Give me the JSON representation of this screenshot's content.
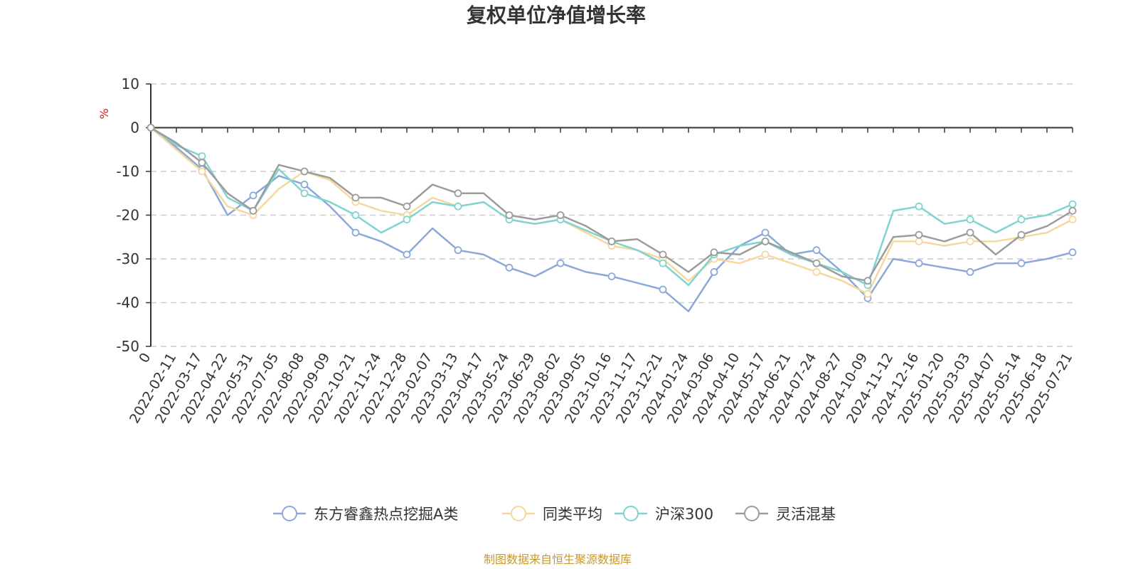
{
  "chart_data": {
    "type": "line",
    "title": "复权单位净值增长率",
    "ylabel": "%",
    "ylim": [
      -50,
      10
    ],
    "yticks": [
      10,
      0,
      -10,
      -20,
      -30,
      -40,
      -50
    ],
    "grid": true,
    "legend_position": "bottom",
    "x": [
      "0",
      "2022-02-11",
      "2022-03-17",
      "2022-04-22",
      "2022-05-31",
      "2022-07-05",
      "2022-08-08",
      "2022-09-09",
      "2022-10-21",
      "2022-11-24",
      "2022-12-28",
      "2023-02-07",
      "2023-03-13",
      "2023-04-17",
      "2023-05-24",
      "2023-06-29",
      "2023-08-02",
      "2023-09-05",
      "2023-10-16",
      "2023-11-17",
      "2023-12-21",
      "2024-01-24",
      "2024-03-06",
      "2024-04-10",
      "2024-05-17",
      "2024-06-21",
      "2024-07-24",
      "2024-08-27",
      "2024-10-09",
      "2024-11-12",
      "2024-12-16",
      "2025-01-20",
      "2025-03-03",
      "2025-04-07",
      "2025-05-14",
      "2025-06-18",
      "2025-07-21"
    ],
    "series": [
      {
        "name": "东方睿鑫热点挖掘A类",
        "color": "#8aa8d8",
        "values": [
          0,
          -4.5,
          -9.5,
          -20,
          -15.5,
          -11,
          -13,
          -18,
          -24,
          -26,
          -29,
          -23,
          -28,
          -29,
          -32,
          -34,
          -31,
          -33,
          -34,
          -35.5,
          -37,
          -42,
          -33,
          -27,
          -24,
          -29,
          -28,
          -33,
          -39,
          -30,
          -31,
          -32,
          -33,
          -31,
          -31,
          -30,
          -28.5
        ]
      },
      {
        "name": "同类平均",
        "color": "#f7d79e",
        "values": [
          0,
          -5,
          -10,
          -18,
          -20,
          -14,
          -10,
          -12,
          -17,
          -19,
          -20,
          -16,
          -18,
          -17,
          -21,
          -22,
          -21,
          -24,
          -27,
          -28,
          -30,
          -35,
          -30,
          -31,
          -29,
          -31,
          -33,
          -35,
          -38,
          -26,
          -26,
          -27,
          -26,
          -26,
          -25,
          -24,
          -21
        ]
      },
      {
        "name": "沪深300",
        "color": "#7fd4d1",
        "values": [
          0,
          -4,
          -6.5,
          -16,
          -19,
          -9.5,
          -15,
          -17,
          -20,
          -24,
          -21,
          -17,
          -18,
          -17,
          -21,
          -22,
          -21,
          -23.5,
          -26,
          -28,
          -31,
          -36,
          -29,
          -27,
          -26,
          -29,
          -31,
          -33,
          -36,
          -19,
          -18,
          -22,
          -21,
          -24,
          -21,
          -20,
          -17.5
        ]
      },
      {
        "name": "灵活混基",
        "color": "#9c9c9c",
        "values": [
          0,
          -3.5,
          -8,
          -15,
          -19,
          -8.5,
          -10,
          -11.5,
          -16,
          -16,
          -18,
          -13,
          -15,
          -15,
          -20,
          -21,
          -20,
          -22.5,
          -26,
          -25.5,
          -29,
          -33,
          -28.5,
          -29,
          -26,
          -28.5,
          -31,
          -34,
          -35,
          -25,
          -24.5,
          -26,
          -24,
          -29,
          -24.5,
          -22.5,
          -19
        ]
      }
    ]
  },
  "legend_label": "",
  "source_text": "制图数据来自恒生聚源数据库"
}
